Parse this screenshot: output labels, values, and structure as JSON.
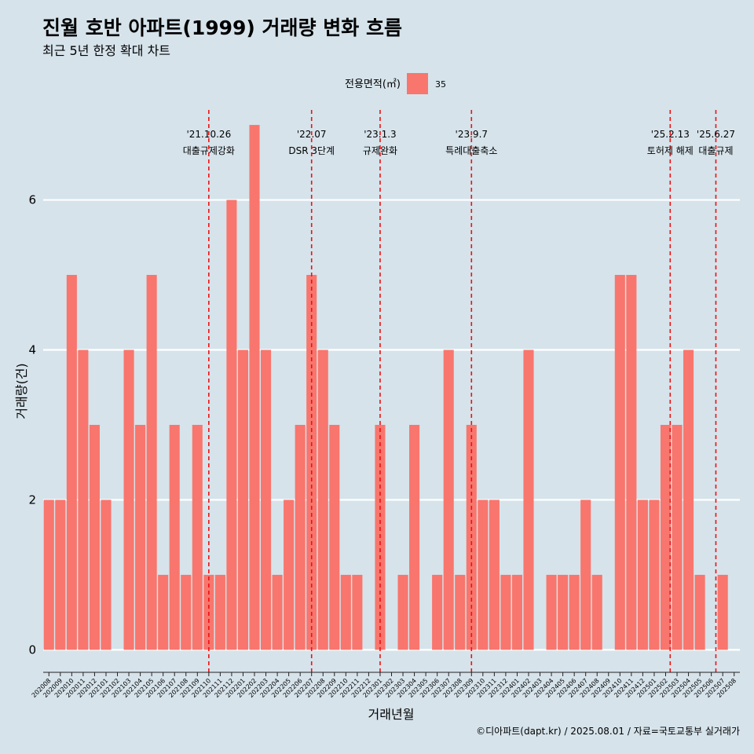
{
  "chart_data": {
    "type": "bar",
    "title": "진월 호반 아파트(1999) 거래량 변화 흐름",
    "subtitle": "최근 5년 한정 확대 차트",
    "xlabel": "거래년월",
    "ylabel": "거래량(건)",
    "legend_title": "전용면적(㎡)",
    "legend_position": "top",
    "grid": true,
    "ylim": [
      -0.3,
      7.2
    ],
    "yticks": [
      0,
      2,
      4,
      6
    ],
    "series": [
      {
        "name": "35",
        "color": "#f8766d"
      }
    ],
    "categories": [
      "202008",
      "202009",
      "202010",
      "202011",
      "202012",
      "202101",
      "202102",
      "202103",
      "202104",
      "202105",
      "202106",
      "202107",
      "202108",
      "202109",
      "202110",
      "202111",
      "202112",
      "202201",
      "202202",
      "202203",
      "202204",
      "202205",
      "202206",
      "202207",
      "202208",
      "202209",
      "202210",
      "202211",
      "202212",
      "202301",
      "202302",
      "202303",
      "202304",
      "202305",
      "202306",
      "202307",
      "202308",
      "202309",
      "202310",
      "202311",
      "202312",
      "202401",
      "202402",
      "202403",
      "202404",
      "202405",
      "202406",
      "202407",
      "202408",
      "202409",
      "202410",
      "202411",
      "202412",
      "202501",
      "202502",
      "202503",
      "202504",
      "202505",
      "202506",
      "202507",
      "202508"
    ],
    "values": [
      2,
      2,
      5,
      4,
      3,
      2,
      0,
      4,
      3,
      5,
      1,
      3,
      1,
      3,
      1,
      1,
      6,
      4,
      7,
      4,
      1,
      2,
      3,
      5,
      4,
      3,
      1,
      1,
      0,
      3,
      0,
      1,
      3,
      0,
      1,
      4,
      1,
      3,
      2,
      2,
      1,
      1,
      4,
      0,
      1,
      1,
      1,
      2,
      1,
      0,
      5,
      5,
      2,
      2,
      3,
      3,
      4,
      1,
      0,
      1,
      0
    ],
    "annotations": [
      {
        "position": 14.0,
        "date": "'21.10.26",
        "text": "대출규제강화"
      },
      {
        "position": 23.0,
        "date": "'22.07",
        "text": "DSR 3단계"
      },
      {
        "position": 29.0,
        "date": "'23.1.3",
        "text": "규제완화"
      },
      {
        "position": 37.0,
        "date": "'23.9.7",
        "text": "특례대출축소"
      },
      {
        "position": 54.4,
        "date": "'25.2.13",
        "text": "토허제 해제"
      },
      {
        "position": 58.4,
        "date": "'25.6.27",
        "text": "대출규제"
      }
    ],
    "caption": "©디아파트(dapt.kr) / 2025.08.01 / 자료=국토교통부 실거래가"
  }
}
